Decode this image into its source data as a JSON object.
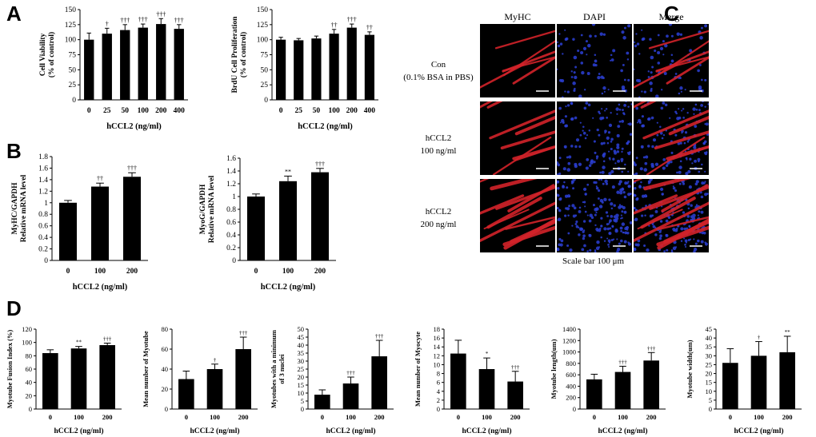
{
  "panel_labels": {
    "a": "A",
    "b": "B",
    "c": "C",
    "d": "D"
  },
  "colors": {
    "bar": "#000000",
    "myhc": "#d2232a",
    "dapi": "#2b3fd6",
    "background": "#ffffff"
  },
  "chart_data": [
    {
      "id": "A1",
      "type": "bar",
      "categories": [
        "0",
        "25",
        "50",
        "100",
        "200",
        "400"
      ],
      "values": [
        100,
        110,
        116,
        120,
        126,
        118
      ],
      "errors": [
        11,
        9,
        9,
        6,
        9,
        7
      ],
      "annotations": [
        "",
        "†",
        "†††",
        "†††",
        "†††",
        "†††"
      ],
      "ylabel": [
        "Cell Viability",
        "(% of control)"
      ],
      "xlabel": "hCCL2 (ng/ml)",
      "ylim": [
        0,
        150
      ],
      "yticks": [
        0,
        25,
        50,
        75,
        100,
        125,
        150
      ]
    },
    {
      "id": "A2",
      "type": "bar",
      "categories": [
        "0",
        "25",
        "50",
        "100",
        "200",
        "400"
      ],
      "values": [
        100,
        99,
        102,
        110,
        120,
        108
      ],
      "errors": [
        4,
        3,
        4,
        7,
        6,
        5
      ],
      "annotations": [
        "",
        "",
        "",
        "††",
        "†††",
        "††"
      ],
      "ylabel": [
        "BrdU Cell Proliferation",
        "(% of control)"
      ],
      "xlabel": "hCCL2 (ng/ml)",
      "ylim": [
        0,
        150
      ],
      "yticks": [
        0,
        25,
        50,
        75,
        100,
        125,
        150
      ]
    },
    {
      "id": "B1",
      "type": "bar",
      "categories": [
        "0",
        "100",
        "200"
      ],
      "values": [
        1.0,
        1.28,
        1.45
      ],
      "errors": [
        0.04,
        0.06,
        0.07
      ],
      "annotations": [
        "",
        "††",
        "†††"
      ],
      "ylabel": [
        "MyHC/GAPDH",
        "Relative mRNA level"
      ],
      "xlabel": "hCCL2 (ng/ml)",
      "ylim": [
        0,
        1.8
      ],
      "yticks": [
        0,
        0.2,
        0.4,
        0.6,
        0.8,
        1,
        1.2,
        1.4,
        1.6,
        1.8
      ]
    },
    {
      "id": "B2",
      "type": "bar",
      "categories": [
        "0",
        "100",
        "200"
      ],
      "values": [
        1.0,
        1.24,
        1.38
      ],
      "errors": [
        0.04,
        0.08,
        0.06
      ],
      "annotations": [
        "",
        "**",
        "†††"
      ],
      "ylabel": [
        "MyoG/GAPDH",
        "Relative mRNA level"
      ],
      "xlabel": "hCCL2 (ng/ml)",
      "ylim": [
        0,
        1.6
      ],
      "yticks": [
        0,
        0.2,
        0.4,
        0.6,
        0.8,
        1,
        1.2,
        1.4,
        1.6
      ]
    },
    {
      "id": "D1",
      "type": "bar",
      "categories": [
        "0",
        "100",
        "200"
      ],
      "values": [
        84,
        91,
        96
      ],
      "errors": [
        5,
        3,
        3
      ],
      "annotations": [
        "",
        "**",
        "†††"
      ],
      "ylabel": [
        "Myotube Fusion Index (%)"
      ],
      "xlabel": "hCCL2 (ng/ml)",
      "ylim": [
        0,
        120
      ],
      "yticks": [
        0,
        20,
        40,
        60,
        80,
        100,
        120
      ]
    },
    {
      "id": "D2",
      "type": "bar",
      "categories": [
        "0",
        "100",
        "200"
      ],
      "values": [
        30,
        40,
        60
      ],
      "errors": [
        8,
        5,
        12
      ],
      "annotations": [
        "",
        "†",
        "†††"
      ],
      "ylabel": [
        "Mean number of Myotube"
      ],
      "xlabel": "hCCL2 (ng/ml)",
      "ylim": [
        0,
        80
      ],
      "yticks": [
        0,
        20,
        40,
        60,
        80
      ]
    },
    {
      "id": "D3",
      "type": "bar",
      "categories": [
        "0",
        "100",
        "200"
      ],
      "values": [
        9,
        16,
        33
      ],
      "errors": [
        3,
        4,
        10
      ],
      "annotations": [
        "",
        "†††",
        "†††"
      ],
      "ylabel": [
        "Myotubes with a minimum",
        "of 3 nuclei"
      ],
      "xlabel": "hCCL2 (ng/ml)",
      "ylim": [
        0,
        50
      ],
      "yticks": [
        0,
        5,
        10,
        15,
        20,
        25,
        30,
        35,
        40,
        45,
        50
      ]
    },
    {
      "id": "D4",
      "type": "bar",
      "categories": [
        "0",
        "100",
        "200"
      ],
      "values": [
        12.5,
        9,
        6.2
      ],
      "errors": [
        3,
        2.5,
        2.3
      ],
      "annotations": [
        "",
        "*",
        "†††"
      ],
      "ylabel": [
        "Mean number of Myocyte"
      ],
      "xlabel": "hCCL2 (ng/ml)",
      "ylim": [
        0,
        18
      ],
      "yticks": [
        0,
        2,
        4,
        6,
        8,
        10,
        12,
        14,
        16,
        18
      ]
    },
    {
      "id": "D5",
      "type": "bar",
      "categories": [
        "0",
        "100",
        "200"
      ],
      "values": [
        520,
        650,
        850
      ],
      "errors": [
        90,
        100,
        140
      ],
      "annotations": [
        "",
        "†††",
        "†††"
      ],
      "ylabel": [
        "Myotube length(um)"
      ],
      "xlabel": "hCCL2 (ng/ml)",
      "ylim": [
        0,
        1400
      ],
      "yticks": [
        0,
        200,
        400,
        600,
        800,
        1000,
        1200,
        1400
      ]
    },
    {
      "id": "D6",
      "type": "bar",
      "categories": [
        "0",
        "100",
        "200"
      ],
      "values": [
        26,
        30,
        32
      ],
      "errors": [
        8,
        8,
        9
      ],
      "annotations": [
        "",
        "†",
        "**"
      ],
      "ylabel": [
        "Myotube width(um)"
      ],
      "xlabel": "hCCL2 (ng/ml)",
      "ylim": [
        0,
        45
      ],
      "yticks": [
        0,
        5,
        10,
        15,
        20,
        25,
        30,
        35,
        40,
        45
      ]
    }
  ],
  "microscopy": {
    "columns": [
      "MyHC",
      "DAPI",
      "Merge"
    ],
    "rows": [
      {
        "line1": "Con",
        "line2": "(0.1% BSA in PBS)"
      },
      {
        "line1": "hCCL2",
        "line2": "100  ng/ml"
      },
      {
        "line1": "hCCL2",
        "line2": "200  ng/ml"
      }
    ],
    "scale_bar_caption": "Scale bar 100  μm"
  }
}
